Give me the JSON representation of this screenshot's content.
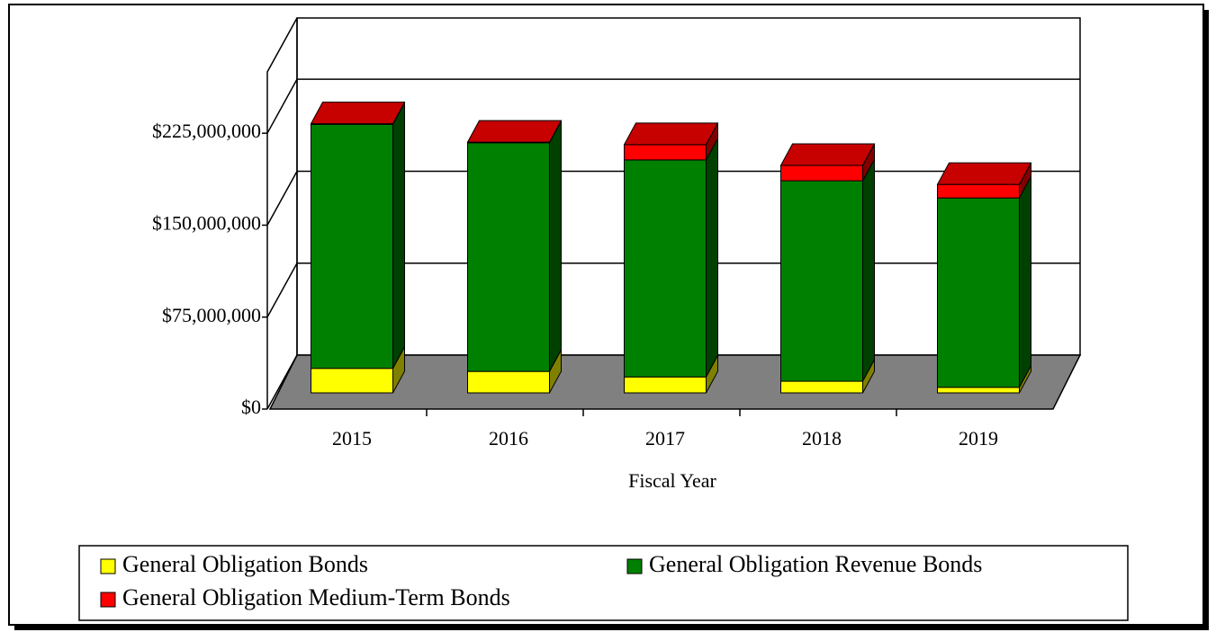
{
  "chart_data": {
    "type": "bar3d_stacked",
    "categories": [
      "2015",
      "2016",
      "2017",
      "2018",
      "2019"
    ],
    "x_label": "Fiscal Year",
    "series": [
      {
        "name": "General Obligation Bonds",
        "color": "#ffff00",
        "values": [
          20000000,
          17500000,
          13000000,
          9500000,
          4500000
        ]
      },
      {
        "name": "General Obligation Revenue Bonds",
        "color": "#008000",
        "values": [
          199000000,
          186500000,
          177000000,
          163500000,
          154500000
        ]
      },
      {
        "name": "General Obligation Medium-Term Bonds",
        "color": "#ff0000",
        "values": [
          500000,
          500000,
          12500000,
          12500000,
          11000000
        ]
      }
    ],
    "ylim": [
      0,
      275000000
    ],
    "yticks": [
      {
        "value": 0,
        "label": "$0"
      },
      {
        "value": 75000000,
        "label": "$75,000,000"
      },
      {
        "value": 150000000,
        "label": "$150,000,000"
      },
      {
        "value": 225000000,
        "label": "$225,000,000"
      }
    ],
    "grid": true
  }
}
